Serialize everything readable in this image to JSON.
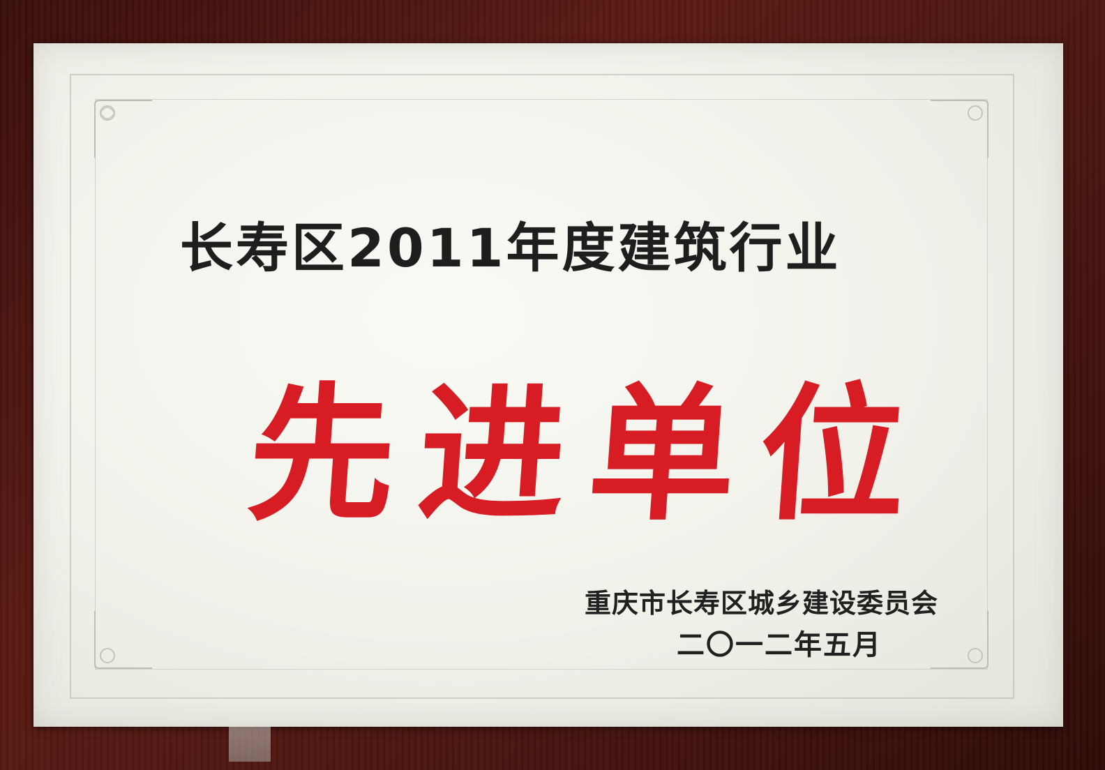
{
  "plaque": {
    "title": "长寿区2011年度建筑行业",
    "award": "先进单位",
    "issuer": "重庆市长寿区城乡建设委员会",
    "date": "二〇一二年五月"
  },
  "colors": {
    "award_red": "#d81c24",
    "text_black": "#202020",
    "plaque_silver": "#f1f1ea",
    "wood": "#4a1510"
  },
  "icons": {
    "corner_ornament": "floral-corner-icon"
  }
}
